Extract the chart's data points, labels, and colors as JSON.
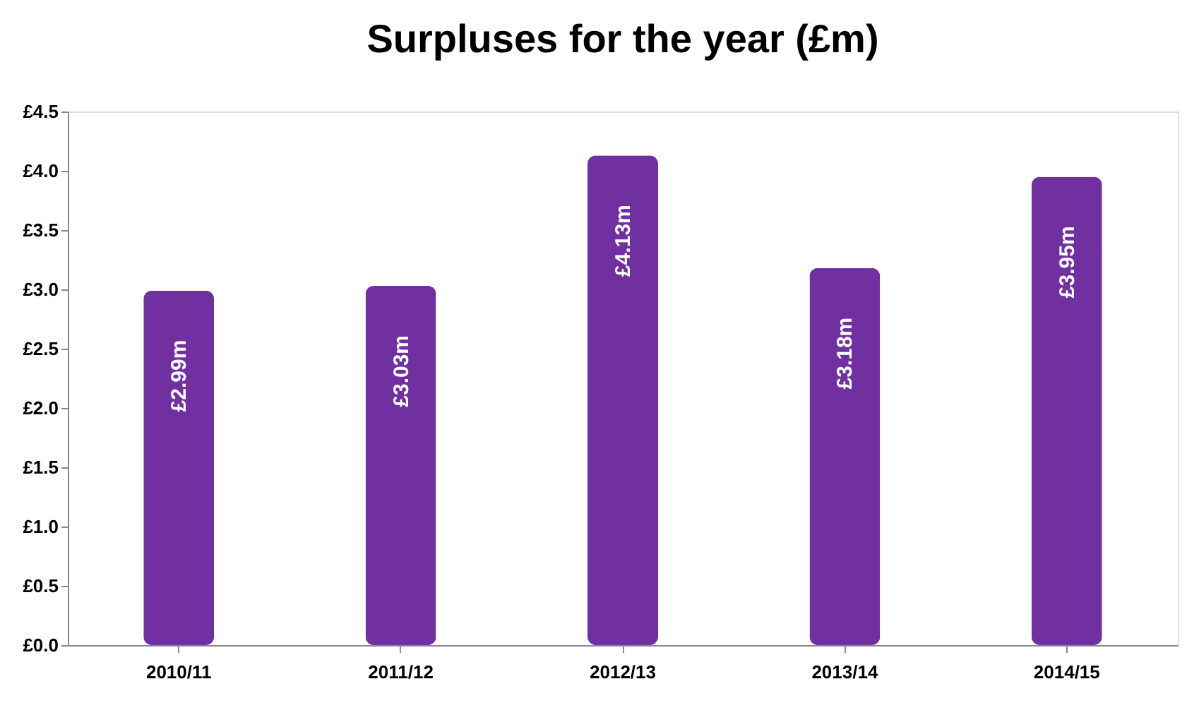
{
  "chart_data": {
    "type": "bar",
    "title": "Surpluses for the year (£m)",
    "categories": [
      "2010/11",
      "2011/12",
      "2012/13",
      "2013/14",
      "2014/15"
    ],
    "values": [
      2.99,
      3.03,
      4.13,
      3.18,
      3.95
    ],
    "value_labels": [
      "£2.99m",
      "£3.03m",
      "£4.13m",
      "£3.18m",
      "£3.95m"
    ],
    "color": "#7030a0",
    "ylim": [
      0,
      4.5
    ],
    "yticks": [
      {
        "value": 0,
        "label": "£0.0"
      },
      {
        "value": 0.5,
        "label": "£0.5"
      },
      {
        "value": 1,
        "label": "£1.0"
      },
      {
        "value": 1.5,
        "label": "£1.5"
      },
      {
        "value": 2,
        "label": "£2.0"
      },
      {
        "value": 2.5,
        "label": "£2.5"
      },
      {
        "value": 3,
        "label": "£3.0"
      },
      {
        "value": 3.5,
        "label": "£3.5"
      },
      {
        "value": 4,
        "label": "£4.0"
      },
      {
        "value": 4.5,
        "label": "£4.5"
      }
    ],
    "grid": false
  }
}
